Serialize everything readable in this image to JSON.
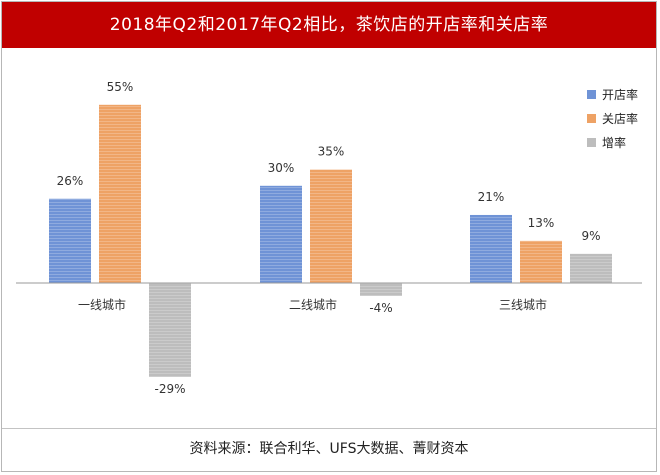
{
  "title": "2018年Q2和2017年Q2相比，茶饮店的开店率和关店率",
  "source": "资料来源：联合利华、UFS大数据、菁财资本",
  "chart_data": {
    "type": "bar",
    "categories": [
      "一线城市",
      "二线城市",
      "三线城市"
    ],
    "series": [
      {
        "name": "开店率",
        "values": [
          26,
          30,
          21
        ],
        "labels": [
          "26%",
          "30%",
          "21%"
        ],
        "color": "#6f93d6"
      },
      {
        "name": "关店率",
        "values": [
          55,
          35,
          13
        ],
        "labels": [
          "55%",
          "35%",
          "13%"
        ],
        "color": "#eea265"
      },
      {
        "name": "增率",
        "values": [
          -29,
          -4,
          9
        ],
        "labels": [
          "-29%",
          "-4%",
          "9%"
        ],
        "color": "#bdbdbd"
      }
    ],
    "unit": "%",
    "legend_position": "right",
    "grid": false
  }
}
